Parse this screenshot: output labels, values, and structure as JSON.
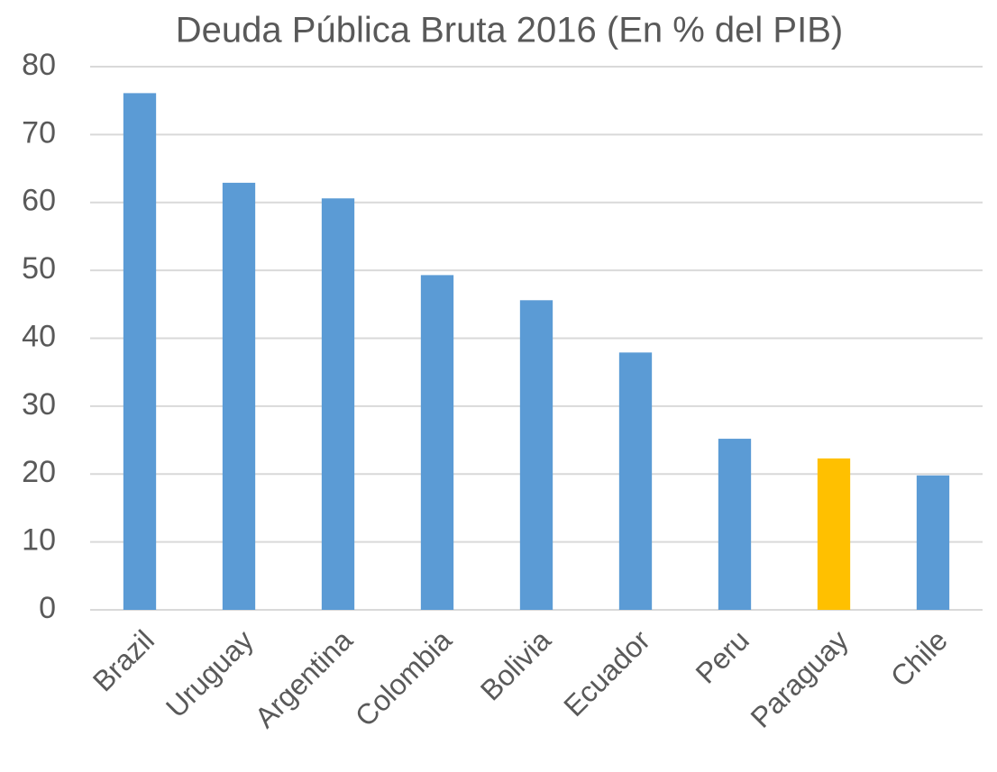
{
  "chart_data": {
    "type": "bar",
    "title": "Deuda Pública Bruta 2016 (En % del PIB)",
    "categories": [
      "Brazil",
      "Uruguay",
      "Argentina",
      "Colombia",
      "Bolivia",
      "Ecuador",
      "Peru",
      "Paraguay",
      "Chile"
    ],
    "values": [
      76.1,
      62.9,
      60.6,
      49.3,
      45.6,
      37.9,
      25.2,
      22.3,
      19.8
    ],
    "colors": [
      "#5b9bd5",
      "#5b9bd5",
      "#5b9bd5",
      "#5b9bd5",
      "#5b9bd5",
      "#5b9bd5",
      "#5b9bd5",
      "#ffc000",
      "#5b9bd5"
    ],
    "ylim": [
      0,
      80
    ],
    "yticks": [
      0,
      10,
      20,
      30,
      40,
      50,
      60,
      70,
      80
    ],
    "grid": true
  }
}
